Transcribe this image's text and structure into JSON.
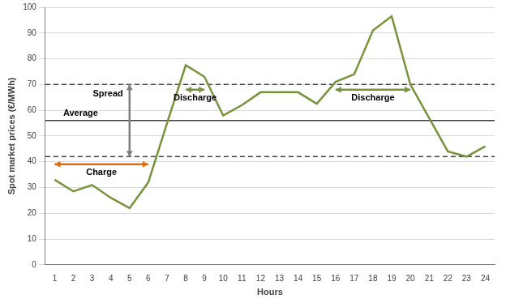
{
  "chart_data": {
    "type": "line",
    "x_label": "Hours",
    "y_label": "Spot market prices (€/MWh)",
    "categories": [
      1,
      2,
      3,
      4,
      5,
      6,
      7,
      8,
      9,
      10,
      11,
      12,
      13,
      14,
      15,
      16,
      17,
      18,
      19,
      20,
      21,
      22,
      23,
      24
    ],
    "values": [
      33,
      28.5,
      31,
      26,
      22,
      32,
      55,
      77.5,
      73,
      58,
      62,
      67,
      67,
      67,
      62.5,
      71,
      74,
      91,
      96.5,
      70,
      57,
      44,
      42,
      46
    ],
    "color": "#77933c",
    "ylim": [
      0,
      100
    ],
    "yticks": [
      0,
      10,
      20,
      30,
      40,
      50,
      60,
      70,
      80,
      90,
      100
    ],
    "grid": true,
    "reference_lines": [
      {
        "label": "Average",
        "value": 56,
        "line_style": "solid",
        "color": "#404040"
      },
      {
        "value": 70,
        "line_style": "dashed",
        "color": "#404040"
      },
      {
        "value": 42,
        "line_style": "dashed",
        "color": "#404040"
      }
    ],
    "annotations": [
      {
        "text": "Spread",
        "x": 5,
        "y": [
          42,
          70
        ],
        "color": "#7f7f7f"
      },
      {
        "text": "Charge",
        "x": [
          1,
          6
        ],
        "y": 39,
        "color": "#e36c0a"
      },
      {
        "text": "Discharge",
        "x": [
          8,
          9
        ],
        "y": 68,
        "color": "#77933c"
      },
      {
        "text": "Discharge",
        "x": [
          16,
          20
        ],
        "y": 68,
        "color": "#77933c"
      }
    ]
  }
}
